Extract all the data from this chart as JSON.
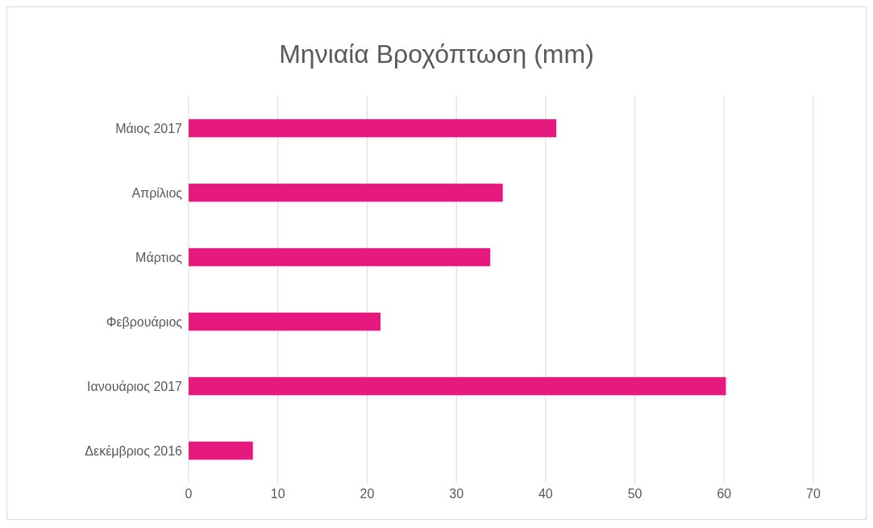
{
  "chart_data": {
    "type": "bar",
    "orientation": "horizontal",
    "title": "Μηνιαία Βροχόπτωση (mm)",
    "categories": [
      "Μάιος 2017",
      "Απρίλιος",
      "Μάρτιος",
      "Φεβρουάριος",
      "Ιανουάριος 2017",
      "Δεκέμβριος 2016"
    ],
    "values": [
      41.2,
      35.2,
      33.8,
      21.5,
      60.2,
      7.2
    ],
    "color": "#e6197f",
    "xlim": [
      0,
      70
    ],
    "xticks": [
      0,
      10,
      20,
      30,
      40,
      50,
      60,
      70
    ],
    "grid": "x"
  }
}
